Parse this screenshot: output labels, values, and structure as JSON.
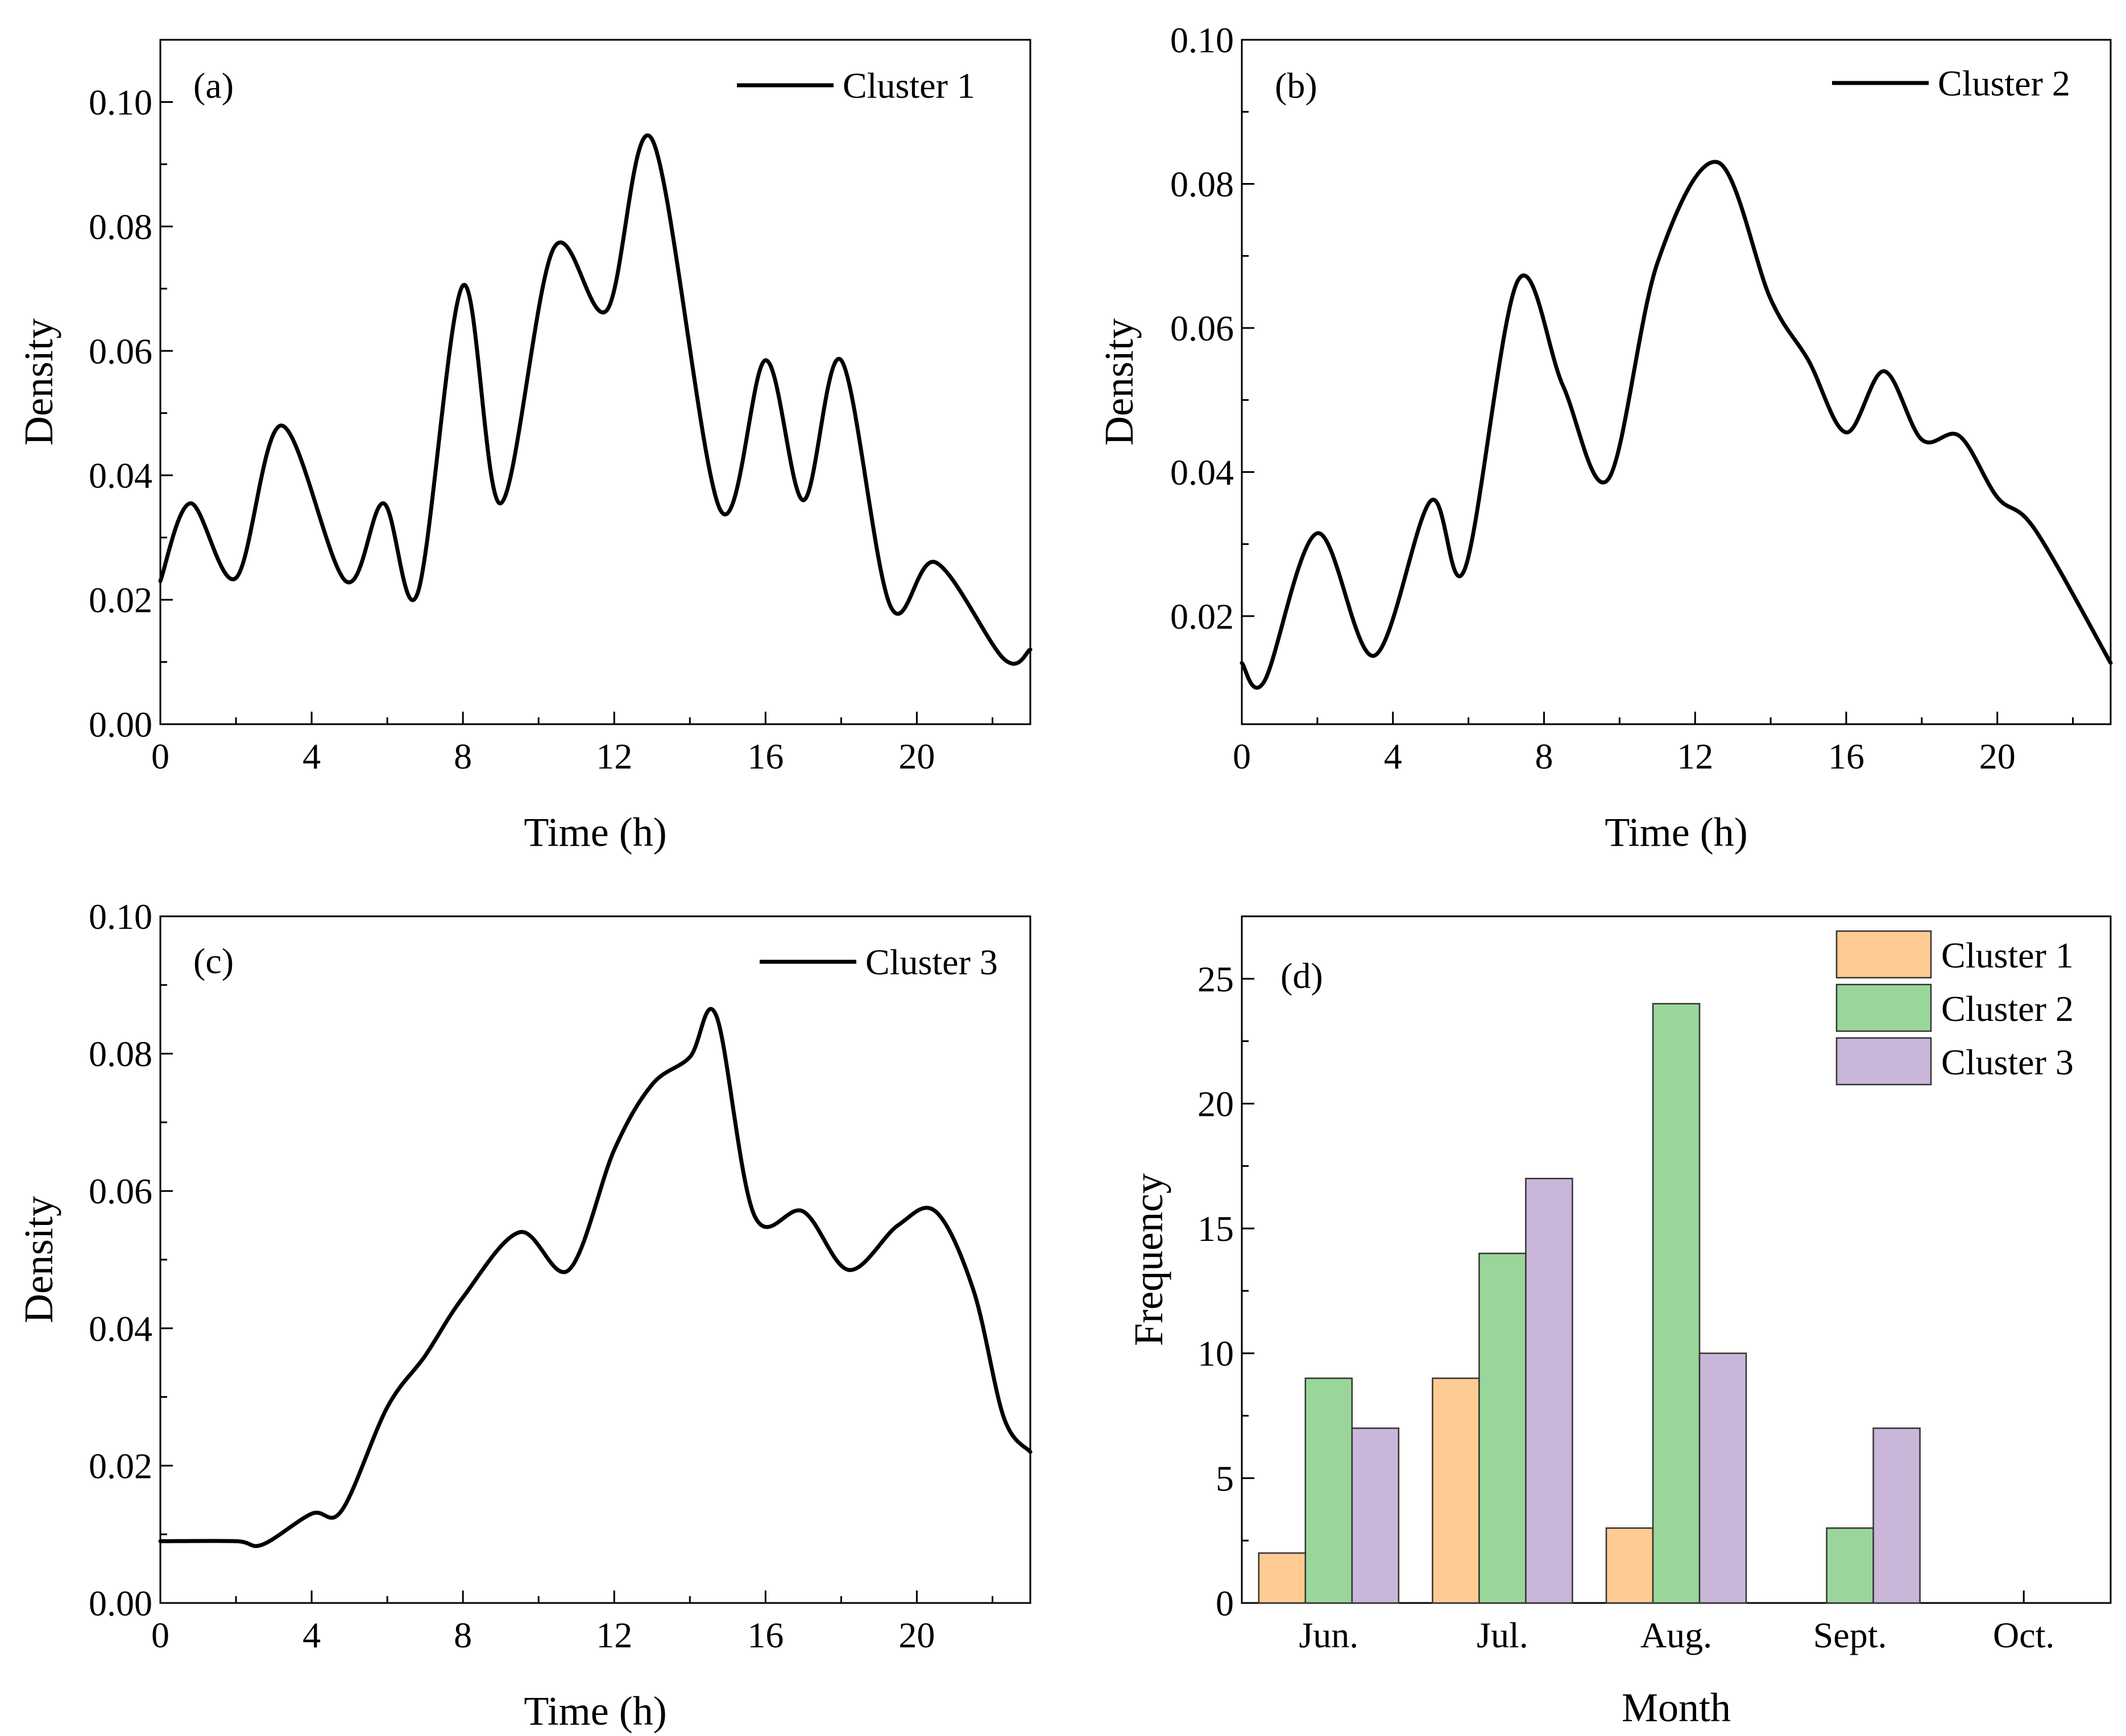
{
  "chart_data": [
    {
      "id": "a",
      "type": "line",
      "panel_label": "(a)",
      "xlabel": "Time (h)",
      "ylabel": "Density",
      "xlim": [
        0,
        23
      ],
      "ylim": [
        0,
        0.11
      ],
      "xticks": [
        0,
        4,
        8,
        12,
        16,
        20
      ],
      "xtick_labels": [
        "0",
        "4",
        "8",
        "12",
        "16",
        "20"
      ],
      "yticks": [
        0,
        0.02,
        0.04,
        0.06,
        0.08,
        0.1
      ],
      "ytick_labels": [
        "0.00",
        "0.02",
        "0.04",
        "0.06",
        "0.08",
        "0.10"
      ],
      "legend_position": "top-right",
      "series": [
        {
          "name": "Cluster 1",
          "color": "#000000",
          "x": [
            0,
            0.8,
            2,
            3.2,
            4.9,
            5.9,
            6.8,
            8,
            9,
            10.4,
            11.8,
            13,
            14.8,
            16,
            17,
            18,
            19.3,
            20.5,
            22.3,
            23
          ],
          "y": [
            0.023,
            0.0355,
            0.0235,
            0.048,
            0.023,
            0.0355,
            0.021,
            0.0705,
            0.0355,
            0.0765,
            0.0665,
            0.094,
            0.0345,
            0.0585,
            0.036,
            0.0585,
            0.019,
            0.026,
            0.0105,
            0.012
          ]
        }
      ]
    },
    {
      "id": "b",
      "type": "line",
      "panel_label": "(b)",
      "xlabel": "Time (h)",
      "ylabel": "Density",
      "xlim": [
        0,
        23
      ],
      "ylim": [
        0.005,
        0.1
      ],
      "xticks": [
        0,
        4,
        8,
        12,
        16,
        20
      ],
      "xtick_labels": [
        "0",
        "4",
        "8",
        "12",
        "16",
        "20"
      ],
      "yticks": [
        0.02,
        0.04,
        0.06,
        0.08,
        0.1
      ],
      "ytick_labels": [
        "0.02",
        "0.04",
        "0.06",
        "0.08",
        "0.10"
      ],
      "legend_position": "top-right",
      "series": [
        {
          "name": "Cluster 2",
          "color": "#000000",
          "x": [
            0,
            0.6,
            2,
            3.5,
            5,
            5.9,
            7.3,
            8.5,
            9.7,
            11,
            12.6,
            14,
            15,
            16,
            17,
            18,
            19,
            20,
            21,
            23
          ],
          "y": [
            0.0135,
            0.011,
            0.0315,
            0.0145,
            0.036,
            0.0265,
            0.0665,
            0.052,
            0.039,
            0.069,
            0.083,
            0.064,
            0.0555,
            0.0455,
            0.054,
            0.0445,
            0.045,
            0.0365,
            0.032,
            0.0135
          ]
        }
      ]
    },
    {
      "id": "c",
      "type": "line",
      "panel_label": "(c)",
      "xlabel": "Time (h)",
      "ylabel": "Density",
      "xlim": [
        0,
        23
      ],
      "ylim": [
        0,
        0.1
      ],
      "xticks": [
        0,
        4,
        8,
        12,
        16,
        20
      ],
      "xtick_labels": [
        "0",
        "4",
        "8",
        "12",
        "16",
        "20"
      ],
      "yticks": [
        0,
        0.02,
        0.04,
        0.06,
        0.08,
        0.1
      ],
      "ytick_labels": [
        "0.00",
        "0.02",
        "0.04",
        "0.06",
        "0.08",
        "0.10"
      ],
      "legend_position": "top-right",
      "series": [
        {
          "name": "Cluster 3",
          "color": "#000000",
          "x": [
            0,
            2,
            2.7,
            4,
            4.8,
            6,
            7,
            8,
            9.5,
            10.8,
            12,
            13,
            14,
            14.7,
            15.7,
            17,
            18.2,
            19.5,
            20.5,
            21.5,
            22.3,
            23
          ],
          "y": [
            0.009,
            0.009,
            0.0085,
            0.013,
            0.0135,
            0.0285,
            0.036,
            0.0445,
            0.054,
            0.0485,
            0.066,
            0.0755,
            0.0795,
            0.0855,
            0.0565,
            0.057,
            0.0485,
            0.055,
            0.057,
            0.0455,
            0.027,
            0.022
          ]
        }
      ]
    },
    {
      "id": "d",
      "type": "bar",
      "panel_label": "(d)",
      "xlabel": "Month",
      "ylabel": "Frequency",
      "categories": [
        "Jun.",
        "Jul.",
        "Aug.",
        "Sept.",
        "Oct."
      ],
      "ylim": [
        0,
        27.5
      ],
      "yticks": [
        0,
        5,
        10,
        15,
        20,
        25
      ],
      "ytick_labels": [
        "0",
        "5",
        "10",
        "15",
        "20",
        "25"
      ],
      "legend_position": "top-right",
      "series": [
        {
          "name": "Cluster 1",
          "color": "#fecb92",
          "values": [
            2,
            9,
            3,
            0,
            0
          ]
        },
        {
          "name": "Cluster 2",
          "color": "#9ad69a",
          "values": [
            9,
            14,
            24,
            3,
            0
          ]
        },
        {
          "name": "Cluster 3",
          "color": "#c9b6d9",
          "values": [
            7,
            17,
            10,
            7,
            0
          ]
        }
      ]
    }
  ]
}
